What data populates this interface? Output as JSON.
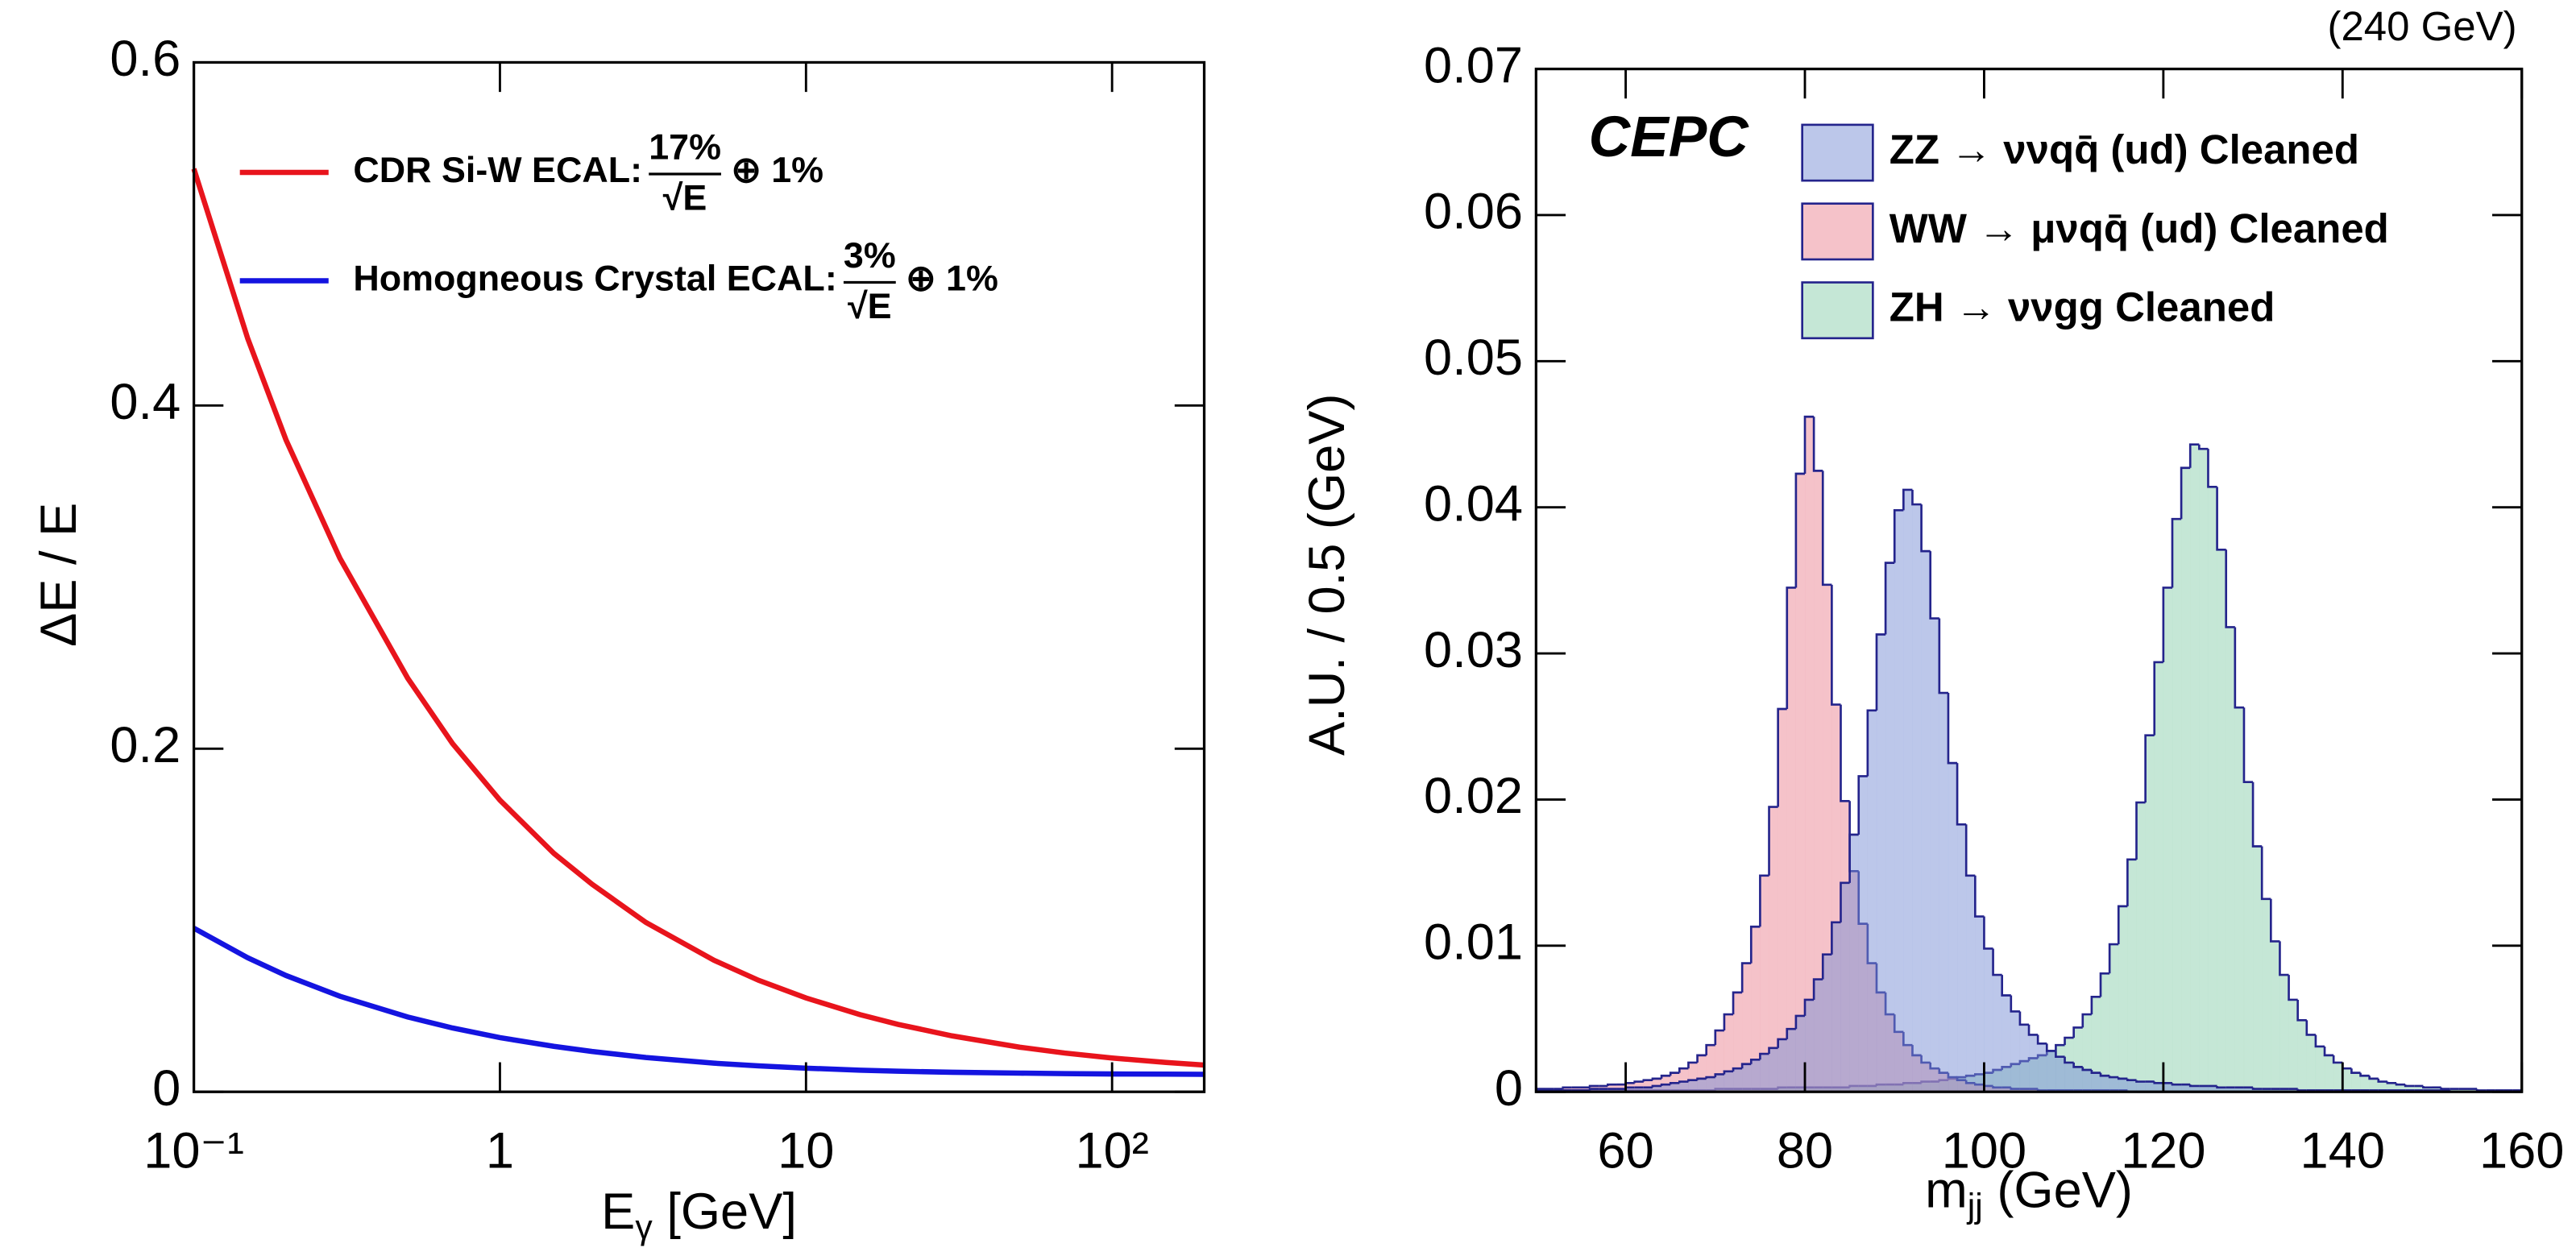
{
  "chart_data": [
    {
      "type": "line",
      "xscale": "log",
      "xlim": [
        0.1,
        200
      ],
      "ylim": [
        0,
        0.6
      ],
      "xticks": [
        {
          "value": 0.1,
          "label": "10⁻¹"
        },
        1,
        10,
        {
          "value": 100,
          "label": "10²"
        }
      ],
      "yticks": [
        0,
        0.2,
        0.4,
        0.6
      ],
      "x_label": {
        "text": "E",
        "subscript": "γ",
        "suffix": " [GeV]"
      },
      "y_label": "ΔE / E",
      "legend": "upper left",
      "x": [
        0.1,
        0.15,
        0.2,
        0.3,
        0.5,
        0.7,
        1,
        1.5,
        2,
        3,
        5,
        7,
        10,
        15,
        20,
        30,
        50,
        70,
        100,
        150,
        200
      ],
      "series": [
        {
          "name": "CDR Si-W ECAL:",
          "formula": {
            "numerator": "17%",
            "denominator": "√E",
            "suffix": "⊕ 1%"
          },
          "color": "#e8141c",
          "values": [
            0.538,
            0.439,
            0.38,
            0.311,
            0.241,
            0.203,
            0.17,
            0.139,
            0.121,
            0.0987,
            0.0767,
            0.065,
            0.0547,
            0.045,
            0.0393,
            0.0326,
            0.026,
            0.0226,
            0.0197,
            0.0171,
            0.0156
          ]
        },
        {
          "name": "Homogneous Crystal ECAL:",
          "formula": {
            "numerator": "3%",
            "denominator": "√E",
            "suffix": "⊕ 1%"
          },
          "color": "#1414e0",
          "values": [
            0.0954,
            0.0781,
            0.0678,
            0.0557,
            0.0436,
            0.0372,
            0.0316,
            0.0265,
            0.0235,
            0.02,
            0.0167,
            0.0151,
            0.0138,
            0.0126,
            0.012,
            0.0114,
            0.0109,
            0.0106,
            0.0104,
            0.0103,
            0.0102
          ]
        }
      ]
    },
    {
      "type": "histogram",
      "annotation": "(240 GeV)",
      "label": "CEPC",
      "xlim": [
        50,
        160
      ],
      "ylim": [
        0,
        0.07
      ],
      "xticks": [
        60,
        80,
        100,
        120,
        140,
        160
      ],
      "yticks": [
        0,
        0.01,
        0.02,
        0.03,
        0.04,
        0.05,
        0.06,
        0.07
      ],
      "x_label": {
        "text": "m",
        "subscript": "jj",
        "suffix": " (GeV)"
      },
      "y_label": "A.U. / 0.5 (GeV)",
      "legend": "upper right",
      "edge_color": "#24248c",
      "bins": [
        50,
        51,
        52,
        53,
        54,
        55,
        56,
        57,
        58,
        59,
        60,
        61,
        62,
        63,
        64,
        65,
        66,
        67,
        68,
        69,
        70,
        71,
        72,
        73,
        74,
        75,
        76,
        77,
        78,
        79,
        80,
        81,
        82,
        83,
        84,
        85,
        86,
        87,
        88,
        89,
        90,
        91,
        92,
        93,
        94,
        95,
        96,
        97,
        98,
        99,
        100,
        101,
        102,
        103,
        104,
        105,
        106,
        107,
        108,
        109,
        110,
        111,
        112,
        113,
        114,
        115,
        116,
        117,
        118,
        119,
        120,
        121,
        122,
        123,
        124,
        125,
        126,
        127,
        128,
        129,
        130,
        131,
        132,
        133,
        134,
        135,
        136,
        137,
        138,
        139,
        140,
        141,
        142,
        143,
        144,
        145,
        146,
        147,
        148,
        149,
        150,
        151,
        152,
        153,
        154,
        155,
        156,
        157,
        158,
        159,
        160
      ],
      "series": [
        {
          "name": "ZZ → ννqq̄ (ud) Cleaned",
          "color": "#7a90d6",
          "values": [
            0.0001,
            0.0001,
            0.0001,
            0.0001,
            0.0001,
            0.0001,
            0.0002,
            0.0002,
            0.0002,
            0.0002,
            0.0003,
            0.0003,
            0.0003,
            0.0004,
            0.0005,
            0.0006,
            0.0007,
            0.0008,
            0.0009,
            0.001,
            0.0012,
            0.0014,
            0.0016,
            0.0019,
            0.0022,
            0.0026,
            0.003,
            0.0036,
            0.0043,
            0.0052,
            0.0063,
            0.0077,
            0.0094,
            0.0116,
            0.0143,
            0.0176,
            0.0216,
            0.0261,
            0.0313,
            0.0362,
            0.0398,
            0.0412,
            0.0402,
            0.037,
            0.0324,
            0.0273,
            0.0225,
            0.0183,
            0.0148,
            0.012,
            0.0098,
            0.008,
            0.0066,
            0.0055,
            0.0046,
            0.0039,
            0.0033,
            0.0028,
            0.0024,
            0.002,
            0.0017,
            0.0015,
            0.0013,
            0.0011,
            0.001,
            0.0009,
            0.0008,
            0.0007,
            0.0007,
            0.0006,
            0.0006,
            0.0005,
            0.0005,
            0.0004,
            0.0004,
            0.0004,
            0.0003,
            0.0003,
            0.0003,
            0.0003,
            0.0002,
            0.0002,
            0.0002,
            0.0002,
            0.0002,
            0.0001,
            0.0001,
            0.0001,
            0.0001,
            0.0001,
            0.0001,
            0.0001,
            0.0001,
            0.0001,
            0.0001,
            0.0001,
            0.0001,
            0.0001,
            0.0001,
            0.0001,
            0.0001,
            0.0001,
            0,
            0,
            0,
            0,
            0,
            0,
            0,
            0
          ]
        },
        {
          "name": "WW → μνqq̄ (ud) Cleaned",
          "color": "#ec8593",
          "values": [
            0.0002,
            0.0002,
            0.0002,
            0.0003,
            0.0003,
            0.0003,
            0.0004,
            0.0004,
            0.0005,
            0.0005,
            0.0006,
            0.0007,
            0.0008,
            0.0009,
            0.0011,
            0.0013,
            0.0016,
            0.002,
            0.0025,
            0.0032,
            0.0042,
            0.0053,
            0.0068,
            0.0088,
            0.0113,
            0.0148,
            0.0195,
            0.0262,
            0.0345,
            0.0423,
            0.0462,
            0.0425,
            0.0347,
            0.0265,
            0.0199,
            0.0151,
            0.0115,
            0.0088,
            0.0068,
            0.0053,
            0.0041,
            0.0032,
            0.0025,
            0.002,
            0.0016,
            0.0013,
            0.001,
            0.0008,
            0.0006,
            0.0005,
            0.0004,
            0.0003,
            0.0003,
            0.0002,
            0.0002,
            0.0002,
            0.0001,
            0.0001,
            0.0001,
            0.0001,
            0.0001,
            0.0001,
            0.0001,
            0.0001,
            0.0001,
            0.0001,
            0,
            0,
            0,
            0,
            0,
            0,
            0,
            0,
            0,
            0,
            0,
            0,
            0,
            0,
            0,
            0,
            0,
            0,
            0,
            0,
            0,
            0,
            0,
            0,
            0,
            0,
            0,
            0,
            0,
            0,
            0,
            0,
            0,
            0,
            0,
            0,
            0,
            0,
            0,
            0,
            0,
            0,
            0,
            0
          ]
        },
        {
          "name": "ZH → ννgg Cleaned",
          "color": "#8ccfae",
          "values": [
            0.0001,
            0.0001,
            0.0001,
            0.0001,
            0.0001,
            0.0001,
            0.0001,
            0.0001,
            0.0001,
            0.0001,
            0.0001,
            0.0001,
            0.0001,
            0.0001,
            0.0001,
            0.0001,
            0.0001,
            0.0001,
            0.0001,
            0.0001,
            0.0002,
            0.0002,
            0.0002,
            0.0002,
            0.0002,
            0.0002,
            0.0002,
            0.0003,
            0.0003,
            0.0003,
            0.0003,
            0.0003,
            0.0003,
            0.0003,
            0.0003,
            0.0004,
            0.0004,
            0.0004,
            0.0005,
            0.0005,
            0.0005,
            0.0006,
            0.0006,
            0.0007,
            0.0007,
            0.0008,
            0.0009,
            0.001,
            0.0011,
            0.0012,
            0.0013,
            0.0015,
            0.0017,
            0.0019,
            0.0021,
            0.0023,
            0.0025,
            0.0028,
            0.0032,
            0.0037,
            0.0044,
            0.0053,
            0.0065,
            0.0081,
            0.0101,
            0.0127,
            0.0159,
            0.0198,
            0.0244,
            0.0294,
            0.0345,
            0.0392,
            0.0427,
            0.0443,
            0.044,
            0.0414,
            0.0371,
            0.0318,
            0.0263,
            0.0212,
            0.0168,
            0.0132,
            0.0103,
            0.008,
            0.0063,
            0.0049,
            0.0039,
            0.0031,
            0.0025,
            0.002,
            0.0016,
            0.0013,
            0.0011,
            0.0009,
            0.0007,
            0.0006,
            0.0005,
            0.0004,
            0.0004,
            0.0003,
            0.0003,
            0.0002,
            0.0002,
            0.0002,
            0.0002,
            0.0001,
            0.0001,
            0.0001,
            0.0001,
            0.0001
          ]
        }
      ]
    }
  ]
}
